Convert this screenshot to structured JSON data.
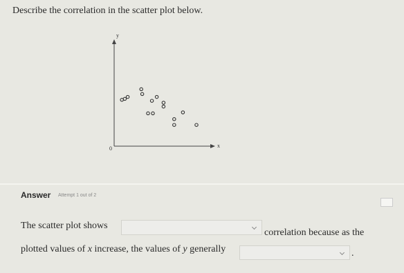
{
  "question": {
    "title": "Describe the correlation in the scatter plot below."
  },
  "scatter": {
    "y_label": "y",
    "x_label": "x",
    "origin_label": "0",
    "xlim": [
      0,
      10
    ],
    "ylim": [
      0,
      10
    ],
    "x": [
      0.8,
      1.1,
      1.4,
      2.8,
      2.9,
      3.9,
      4.4,
      5.1,
      5.1,
      3.5,
      4.0,
      7.1,
      6.2,
      6.2,
      8.5
    ],
    "y": [
      4.8,
      4.9,
      5.1,
      5.9,
      5.4,
      4.7,
      5.1,
      4.5,
      4.1,
      3.4,
      3.4,
      3.5,
      2.8,
      2.2,
      2.2
    ]
  },
  "answer": {
    "label": "Answer",
    "attempt": "Attempt 1 out of 2",
    "line1": {
      "before": "The scatter plot shows",
      "after": "correlation because as the"
    },
    "line2": {
      "parts": [
        "plotted values of ",
        "x",
        " increase, the values of ",
        "y",
        " generally"
      ],
      "end": "."
    }
  }
}
